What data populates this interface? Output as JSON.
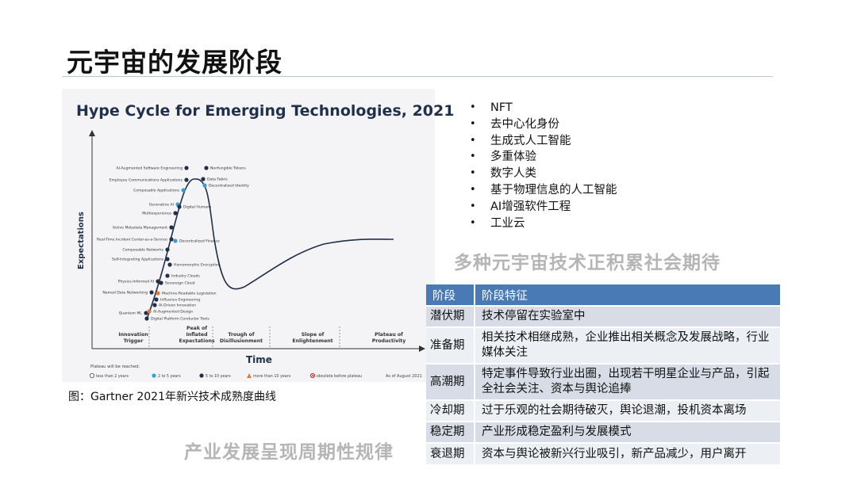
{
  "slide": {
    "title": "元宇宙的发展阶段",
    "caption": "图：Gartner 2021年新兴技术成熟度曲线",
    "watermark_top": "多种元宇宙技术正积累社会期待",
    "watermark_bottom": "产业发展呈现周期性规律"
  },
  "bullets": [
    "NFT",
    "去中心化身份",
    "生成式人工智能",
    "多重体验",
    "数字人类",
    "基于物理信息的人工智能",
    "AI增强软件工程",
    "工业云"
  ],
  "stage_table": {
    "headers": [
      "阶段",
      "阶段特征"
    ],
    "rows": [
      {
        "stage": "潜伏期",
        "desc": "技术停留在实验室中"
      },
      {
        "stage": "准备期",
        "desc": "相关技术相继成熟，企业推出相关概念及发展战略，行业媒体关注"
      },
      {
        "stage": "高潮期",
        "desc": "特定事件导致行业出圈，出现若干明星企业与产品，引起全社会关注、资本与舆论追捧"
      },
      {
        "stage": "冷却期",
        "desc": "过于乐观的社会期待破灭，舆论退潮，投机资本离场"
      },
      {
        "stage": "稳定期",
        "desc": "产业形成稳定盈利与发展模式"
      },
      {
        "stage": "衰退期",
        "desc": "资本与舆论被新兴行业吸引，新产品减少，用户离开"
      }
    ]
  },
  "hype_cycle": {
    "title": "Hype Cycle for Emerging Technologies, 2021",
    "y_axis": "Expectations",
    "x_axis": "Time",
    "phases": [
      "Innovation Trigger",
      "Peak of Inflated Expectations",
      "Trough of Disillusionment",
      "Slope of Enlightenment",
      "Plateau of Productivity"
    ],
    "plateau_label": "Plateau will be reached:",
    "legend": [
      {
        "label": "less than 2 years",
        "color": "#ffffff"
      },
      {
        "label": "2 to 5 years",
        "color": "#3a9fd0"
      },
      {
        "label": "5 to 10 years",
        "color": "#1f3048"
      },
      {
        "label": "more than 10 years",
        "color": "#e07a3a"
      },
      {
        "label": "obsolete before plateau",
        "color": "#d0312d"
      }
    ],
    "as_of": "As of August 2021",
    "technologies": [
      "AI-Augmented Software Engineering",
      "Nonfungible Tokens",
      "Employee Communications Applications",
      "Data Fabric",
      "Decentralized Identity",
      "Composable Applications",
      "Generative AI",
      "Multiexperience",
      "Digital Humans",
      "Active Metadata Management",
      "Real-Time Incident Center-as-a-Service",
      "Decentralized Finance",
      "Composable Networks",
      "Self-Integrating Applications",
      "Homomorphic Encryption",
      "Industry Clouds",
      "Physics-Informed AI",
      "Sovereign Cloud",
      "Named Data Networking",
      "Machine-Readable Legislation",
      "Influence Engineering",
      "AI-Driven Innovation",
      "Quantum ML",
      "AI-Augmented Design",
      "Digital Platform Conductor Tools"
    ]
  }
}
